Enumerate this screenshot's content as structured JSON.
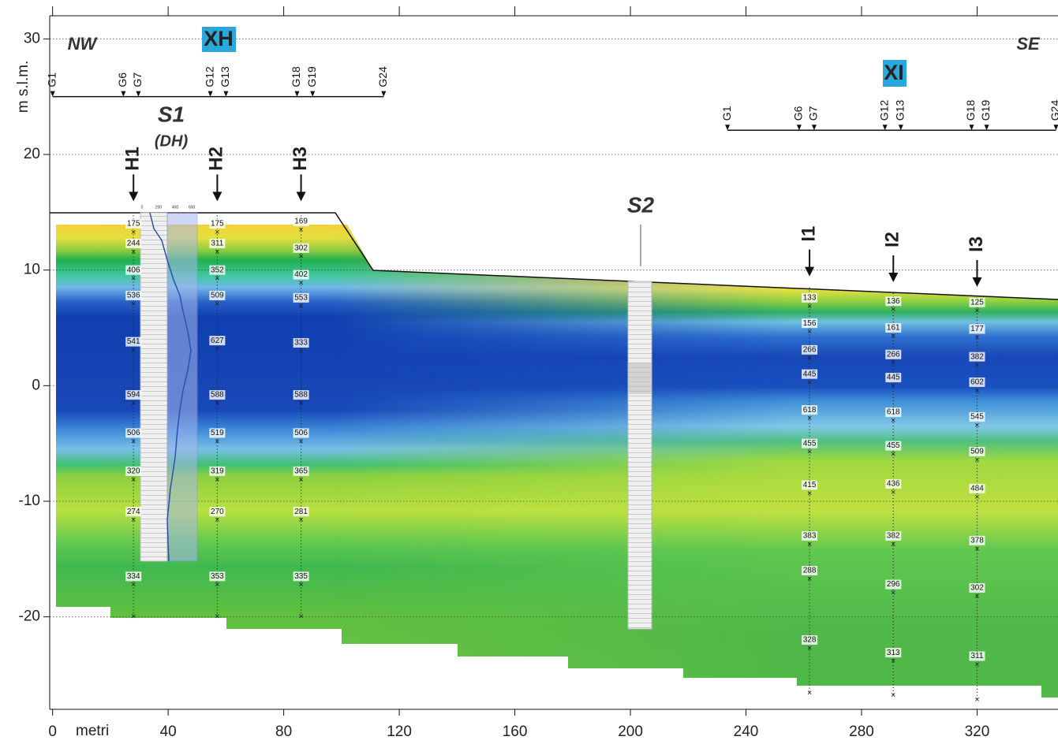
{
  "chart_data": {
    "type": "section",
    "ylabel": "m s.l.m.",
    "xlabel": "metri",
    "xlim": [
      -1,
      348
    ],
    "ylim": [
      -28,
      32
    ],
    "xticks": [
      0,
      40,
      80,
      120,
      160,
      200,
      240,
      280,
      320
    ],
    "yticks": [
      30,
      20,
      10,
      0,
      -10,
      -20
    ],
    "grid": true,
    "annotations": {
      "left": "NW",
      "right": "SE",
      "s1": "S1",
      "s1_note": "(DH)",
      "s2": "S2"
    },
    "s1_scale": [
      0,
      200,
      400,
      600
    ],
    "spreads": [
      {
        "name": "XH",
        "line_y": 25,
        "geophones": [
          {
            "name": "G1",
            "x": 0
          },
          {
            "name": "G6",
            "x": 24.5
          },
          {
            "name": "G7",
            "x": 29.7
          },
          {
            "name": "G12",
            "x": 54.6
          },
          {
            "name": "G13",
            "x": 60
          },
          {
            "name": "G18",
            "x": 84.6
          },
          {
            "name": "G19",
            "x": 90
          },
          {
            "name": "G24",
            "x": 114.6
          }
        ]
      },
      {
        "name": "XI",
        "line_y": 22.1,
        "geophones": [
          {
            "name": "G1",
            "x": 233.6
          },
          {
            "name": "G6",
            "x": 258.4
          },
          {
            "name": "G7",
            "x": 263.6
          },
          {
            "name": "G12",
            "x": 288.1
          },
          {
            "name": "G13",
            "x": 293.6
          },
          {
            "name": "G18",
            "x": 318.1
          },
          {
            "name": "G19",
            "x": 323.3
          },
          {
            "name": "G24",
            "x": 347.3
          }
        ]
      }
    ],
    "boreholes": [
      {
        "name": "H1",
        "x": 28,
        "top": 15,
        "bottom": -20,
        "readings": [
          {
            "y": 14,
            "v": 175
          },
          {
            "y": 12.3,
            "v": 244
          },
          {
            "y": 10,
            "v": 406
          },
          {
            "y": 7.8,
            "v": 536
          },
          {
            "y": 3.8,
            "v": 541
          },
          {
            "y": -0.8,
            "v": 594
          },
          {
            "y": -4.1,
            "v": 506
          },
          {
            "y": -7.4,
            "v": 320
          },
          {
            "y": -10.9,
            "v": 274
          },
          {
            "y": -16.5,
            "v": 334
          }
        ]
      },
      {
        "name": "H2",
        "x": 57,
        "top": 15,
        "bottom": -20,
        "readings": [
          {
            "y": 14,
            "v": 175
          },
          {
            "y": 12.3,
            "v": 311
          },
          {
            "y": 10,
            "v": 352
          },
          {
            "y": 7.8,
            "v": 509
          },
          {
            "y": 3.9,
            "v": 627
          },
          {
            "y": -0.8,
            "v": 588
          },
          {
            "y": -4.1,
            "v": 519
          },
          {
            "y": -7.4,
            "v": 319
          },
          {
            "y": -10.9,
            "v": 270
          },
          {
            "y": -16.5,
            "v": 353
          }
        ]
      },
      {
        "name": "H3",
        "x": 86,
        "top": 15,
        "bottom": -20,
        "readings": [
          {
            "y": 14.2,
            "v": 169
          },
          {
            "y": 11.9,
            "v": 302
          },
          {
            "y": 9.6,
            "v": 402
          },
          {
            "y": 7.6,
            "v": 553
          },
          {
            "y": 3.7,
            "v": 333
          },
          {
            "y": -0.8,
            "v": 588
          },
          {
            "y": -4.1,
            "v": 506
          },
          {
            "y": -7.4,
            "v": 365
          },
          {
            "y": -10.9,
            "v": 281
          },
          {
            "y": -16.5,
            "v": 335
          }
        ]
      },
      {
        "name": "I1",
        "x": 262,
        "top": 8.5,
        "bottom": -26.6,
        "readings": [
          {
            "y": 7.6,
            "v": 133
          },
          {
            "y": 5.4,
            "v": 156
          },
          {
            "y": 3.1,
            "v": 266
          },
          {
            "y": 1,
            "v": 445
          },
          {
            "y": -2.1,
            "v": 618
          },
          {
            "y": -5,
            "v": 455
          },
          {
            "y": -8.6,
            "v": 415
          },
          {
            "y": -13,
            "v": 383
          },
          {
            "y": -16,
            "v": 288
          },
          {
            "y": -22,
            "v": 328
          }
        ]
      },
      {
        "name": "I2",
        "x": 291,
        "top": 8,
        "bottom": -26.8,
        "readings": [
          {
            "y": 7.3,
            "v": 136
          },
          {
            "y": 5,
            "v": 161
          },
          {
            "y": 2.7,
            "v": 266
          },
          {
            "y": 0.7,
            "v": 445
          },
          {
            "y": -2.3,
            "v": 618
          },
          {
            "y": -5.2,
            "v": 455
          },
          {
            "y": -8.5,
            "v": 436
          },
          {
            "y": -13,
            "v": 382
          },
          {
            "y": -17.2,
            "v": 296
          },
          {
            "y": -23.1,
            "v": 313
          }
        ]
      },
      {
        "name": "I3",
        "x": 320,
        "top": 7.6,
        "bottom": -27.2,
        "readings": [
          {
            "y": 7.2,
            "v": 125
          },
          {
            "y": 4.9,
            "v": 177
          },
          {
            "y": 2.5,
            "v": 382
          },
          {
            "y": 0.3,
            "v": 602
          },
          {
            "y": -2.7,
            "v": 545
          },
          {
            "y": -5.7,
            "v": 509
          },
          {
            "y": -8.9,
            "v": 484
          },
          {
            "y": -13.4,
            "v": 378
          },
          {
            "y": -17.5,
            "v": 302
          },
          {
            "y": -23.4,
            "v": 311
          }
        ]
      }
    ]
  }
}
